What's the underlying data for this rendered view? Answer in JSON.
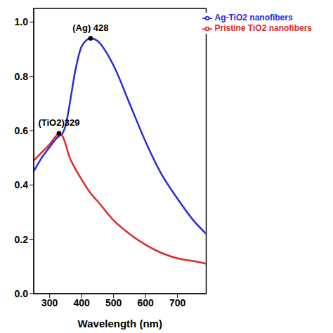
{
  "chart_data": {
    "type": "line",
    "x_label": "Wavelength (nm)",
    "x": [
      250,
      275,
      300,
      320,
      329,
      340,
      350,
      360,
      380,
      400,
      428,
      450,
      500,
      550,
      600,
      650,
      700,
      750,
      790
    ],
    "series": [
      {
        "name": "Ag-TiO2 nanofibers",
        "color": "#2a2ae0",
        "values": [
          0.45,
          0.5,
          0.54,
          0.57,
          0.58,
          0.59,
          0.62,
          0.68,
          0.82,
          0.91,
          0.94,
          0.93,
          0.84,
          0.7,
          0.56,
          0.44,
          0.35,
          0.27,
          0.22
        ]
      },
      {
        "name": "Pristine TiO2 nanofibers",
        "color": "#e02a2a",
        "values": [
          0.49,
          0.52,
          0.55,
          0.58,
          0.59,
          0.58,
          0.55,
          0.51,
          0.46,
          0.42,
          0.37,
          0.34,
          0.27,
          0.22,
          0.18,
          0.15,
          0.13,
          0.12,
          0.11
        ]
      }
    ],
    "xlim": [
      250,
      790
    ],
    "xticks": [
      300,
      400,
      500,
      600,
      700
    ],
    "ylim": [
      0,
      1.05
    ],
    "yticks": [
      {
        "value": 0,
        "label": "0.0"
      },
      0.2,
      0.4,
      0.6,
      0.8,
      {
        "value": 1,
        "label": "1.0"
      }
    ],
    "annotations": [
      {
        "text": "(Ag) 428",
        "x": 428,
        "y": 0.94
      },
      {
        "text": "(TiO2)329",
        "x": 329,
        "y": 0.59
      }
    ],
    "legend": "top-right",
    "grid": false
  }
}
